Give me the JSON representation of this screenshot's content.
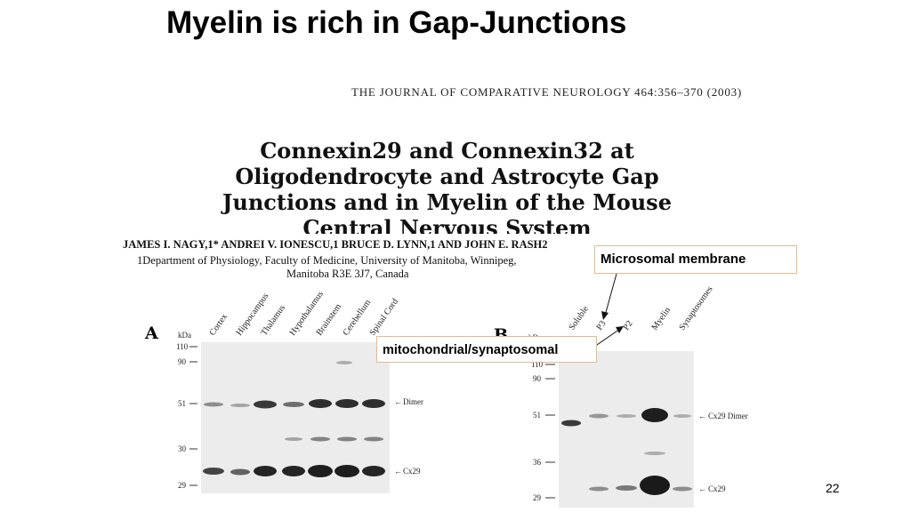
{
  "slide": {
    "title": "Myelin is rich in Gap-Junctions",
    "page_number": "22"
  },
  "paper": {
    "journal": "THE JOURNAL OF COMPARATIVE NEUROLOGY 464:356–370 (2003)",
    "title_lines": [
      "Connexin29 and Connexin32 at",
      "Oligodendrocyte and Astrocyte Gap",
      "Junctions and in Myelin of the Mouse",
      "Central Nervous System"
    ],
    "authors": "JAMES I. NAGY,1* ANDREI V. IONESCU,1 BRUCE D. LYNN,1 AND JOHN E. RASH2",
    "affiliation_line1": "1Department of Physiology, Faculty of Medicine, University of Manitoba, Winnipeg,",
    "affiliation_line2": "Manitoba R3E 3J7, Canada"
  },
  "callouts": {
    "microsomal": "Microsomal membrane",
    "mitochondrial": "mitochondrial/synaptosomal"
  },
  "panel_a": {
    "letter": "A",
    "kda_label": "kDa",
    "lanes": [
      "Cortex",
      "Hippocampus",
      "Thalamus",
      "Hypothalamus",
      "Brainstem",
      "Cerebellum",
      "Spinal Cord"
    ],
    "markers": [
      "110",
      "90",
      "51",
      "30",
      "29"
    ],
    "annotations": [
      "Dimer",
      "Cx29"
    ]
  },
  "panel_b": {
    "letter": "B",
    "kda_label": "kDa",
    "lanes": [
      "Soluble",
      "P3",
      "P2",
      "Myelin",
      "Synaptosomes"
    ],
    "markers": [
      "110",
      "90",
      "51",
      "36",
      "29"
    ],
    "annotations": [
      "Cx29 Dimer",
      "Cx29"
    ]
  },
  "colors": {
    "callout_border": "#e8b98a",
    "blot_background": "#ececec",
    "band": "#1a1a1a"
  }
}
